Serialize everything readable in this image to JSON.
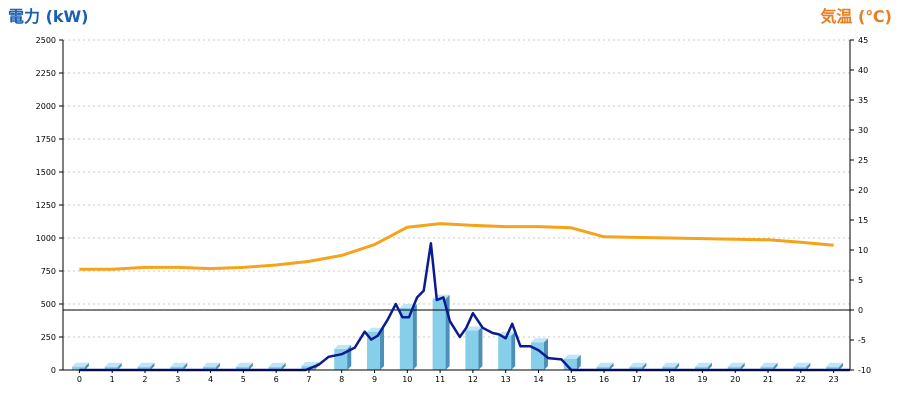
{
  "chart_data": {
    "type": "bar+line",
    "left_axis": {
      "label": "電力 (kW)",
      "min": 0,
      "max": 2500,
      "ticks": [
        0,
        250,
        500,
        750,
        1000,
        1250,
        1500,
        1750,
        2000,
        2250,
        2500
      ]
    },
    "right_axis": {
      "label": "気温 (℃)",
      "min": -10,
      "max": 45,
      "ticks": [
        -10,
        -5,
        0,
        5,
        10,
        15,
        20,
        25,
        30,
        35,
        40,
        45
      ]
    },
    "categories": [
      "0",
      "1",
      "2",
      "3",
      "4",
      "5",
      "6",
      "7",
      "8",
      "9",
      "10",
      "11",
      "12",
      "13",
      "14",
      "15",
      "16",
      "17",
      "18",
      "19",
      "20",
      "21",
      "22",
      "23"
    ],
    "bars": {
      "axis": "left",
      "values": [
        25,
        25,
        25,
        25,
        25,
        25,
        25,
        30,
        160,
        290,
        470,
        540,
        300,
        260,
        210,
        85,
        25,
        25,
        25,
        25,
        25,
        25,
        25,
        25
      ]
    },
    "power_line": {
      "axis": "left",
      "points": [
        [
          0,
          0
        ],
        [
          6.9,
          0
        ],
        [
          7.3,
          40
        ],
        [
          7.6,
          100
        ],
        [
          8.0,
          120
        ],
        [
          8.4,
          170
        ],
        [
          8.7,
          290
        ],
        [
          8.9,
          230
        ],
        [
          9.1,
          260
        ],
        [
          9.4,
          380
        ],
        [
          9.65,
          500
        ],
        [
          9.85,
          400
        ],
        [
          10.05,
          400
        ],
        [
          10.3,
          550
        ],
        [
          10.5,
          600
        ],
        [
          10.72,
          960
        ],
        [
          10.9,
          530
        ],
        [
          11.1,
          550
        ],
        [
          11.3,
          370
        ],
        [
          11.6,
          250
        ],
        [
          11.8,
          320
        ],
        [
          12.0,
          430
        ],
        [
          12.3,
          320
        ],
        [
          12.6,
          280
        ],
        [
          12.8,
          270
        ],
        [
          13.0,
          240
        ],
        [
          13.2,
          350
        ],
        [
          13.45,
          180
        ],
        [
          13.75,
          180
        ],
        [
          14.0,
          150
        ],
        [
          14.3,
          90
        ],
        [
          14.7,
          80
        ],
        [
          15.0,
          0
        ],
        [
          23.5,
          0
        ]
      ]
    },
    "temperature_line": {
      "axis": "right",
      "points": [
        [
          0,
          6.8
        ],
        [
          1,
          6.8
        ],
        [
          2,
          7.1
        ],
        [
          3,
          7.1
        ],
        [
          4,
          6.9
        ],
        [
          5,
          7.1
        ],
        [
          6,
          7.5
        ],
        [
          7,
          8.1
        ],
        [
          8,
          9.1
        ],
        [
          9,
          10.9
        ],
        [
          10,
          13.8
        ],
        [
          11,
          14.4
        ],
        [
          12,
          14.1
        ],
        [
          13,
          13.9
        ],
        [
          14,
          13.9
        ],
        [
          15,
          13.7
        ],
        [
          16,
          12.2
        ],
        [
          17,
          12.1
        ],
        [
          18,
          12.0
        ],
        [
          19,
          11.9
        ],
        [
          20,
          11.8
        ],
        [
          21,
          11.7
        ],
        [
          22,
          11.3
        ],
        [
          23,
          10.8
        ]
      ]
    },
    "colors": {
      "bar_front": "#87ceeb",
      "bar_side": "#4a90b8",
      "bar_top": "#bfe6f7",
      "power_line": "#0b1b8f",
      "temperature_line": "#f5a31a",
      "left_title": "#1a5fb4",
      "right_title": "#e67e22"
    },
    "grid": true
  }
}
